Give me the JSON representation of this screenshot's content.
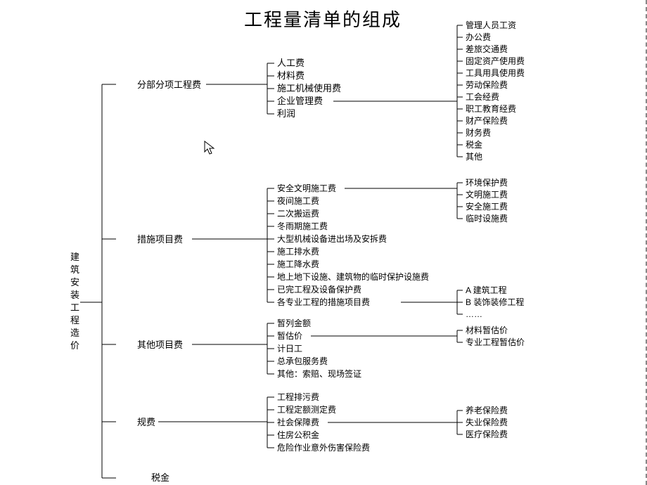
{
  "title": "工程量清单的组成",
  "root": "建筑安装工程造价",
  "tax_label": "税金",
  "type": "tree",
  "line_color": "#000000",
  "background_color": "#ffffff",
  "text_color": "#000000",
  "title_fontsize": 26,
  "node_fontsize": 13,
  "level1": [
    {
      "label": "分部分项工程费",
      "children": [
        {
          "label": "人工费"
        },
        {
          "label": "材料费"
        },
        {
          "label": "施工机械使用费"
        },
        {
          "label": "企业管理费",
          "children": [
            "管理人员工资",
            "办公费",
            "差旅交通费",
            "固定资产使用费",
            "工具用具使用费",
            "劳动保险费",
            "工会经费",
            "职工教育经费",
            "财产保险费",
            "财务费",
            "税金",
            "其他"
          ]
        },
        {
          "label": "利润"
        }
      ]
    },
    {
      "label": "措施项目费",
      "children": [
        {
          "label": "安全文明施工费",
          "children": [
            "环境保护费",
            "文明施工费",
            "安全施工费",
            "临时设施费"
          ]
        },
        {
          "label": "夜间施工费"
        },
        {
          "label": "二次搬运费"
        },
        {
          "label": "冬雨期施工费"
        },
        {
          "label": "大型机械设备进出场及安拆费"
        },
        {
          "label": "施工排水费"
        },
        {
          "label": "施工降水费"
        },
        {
          "label": "地上地下设施、建筑物的临时保护设施费"
        },
        {
          "label": "已完工程及设备保护费"
        },
        {
          "label": "各专业工程的措施项目费",
          "children": [
            "A 建筑工程",
            "B 装饰装修工程",
            "……"
          ]
        }
      ]
    },
    {
      "label": "其他项目费",
      "children": [
        {
          "label": "暂列金额"
        },
        {
          "label": "暂估价",
          "children": [
            "材料暂估价",
            "专业工程暂估价"
          ]
        },
        {
          "label": "计日工"
        },
        {
          "label": "总承包服务费"
        },
        {
          "label": "其他：索赔、现场签证"
        }
      ]
    },
    {
      "label": "规费",
      "children": [
        {
          "label": "工程排污费"
        },
        {
          "label": "工程定额测定费"
        },
        {
          "label": "社会保障费",
          "children": [
            "养老保险费",
            "失业保险费",
            "医疗保险费"
          ]
        },
        {
          "label": "住房公积金"
        },
        {
          "label": "危险作业意外伤害保险费"
        }
      ]
    }
  ]
}
